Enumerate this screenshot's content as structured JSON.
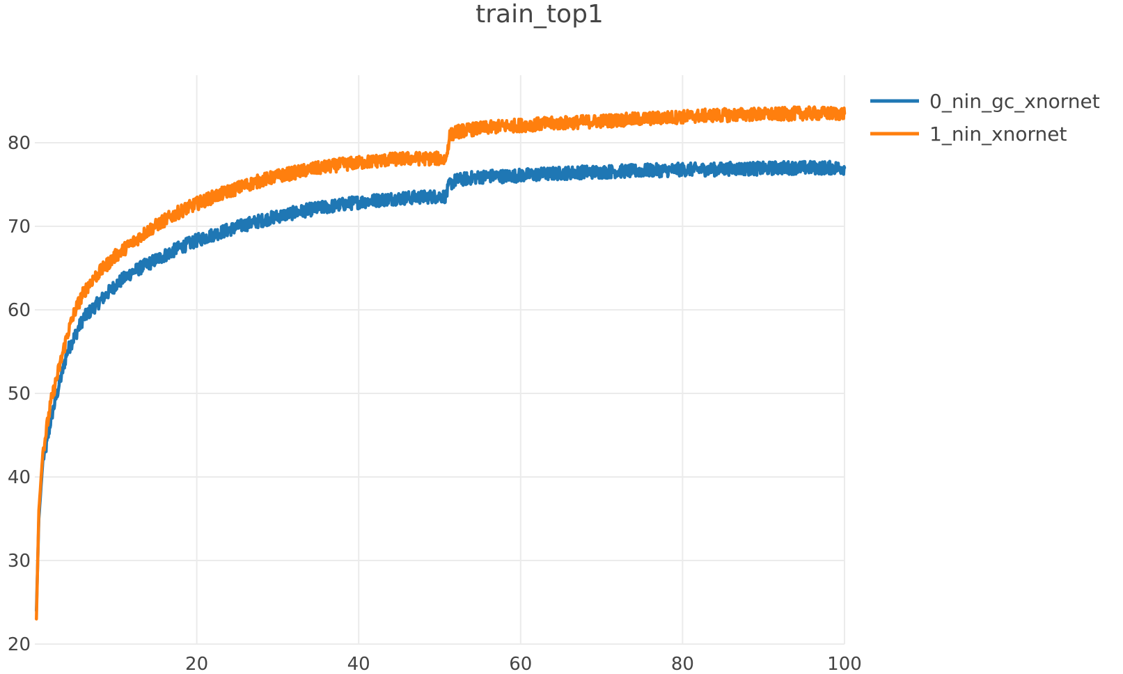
{
  "chart_data": {
    "type": "line",
    "title": "train_top1",
    "xlabel": "",
    "ylabel": "",
    "xlim": [
      0,
      100
    ],
    "ylim": [
      20,
      88
    ],
    "xticks": [
      20,
      40,
      60,
      80,
      100
    ],
    "yticks": [
      20,
      30,
      40,
      50,
      60,
      70,
      80
    ],
    "grid": true,
    "legend_position": "top-right",
    "series": [
      {
        "name": "0_nin_gc_xnornet",
        "color": "#1f77b4",
        "x": [
          0.2,
          0.5,
          1,
          1.5,
          2,
          3,
          4,
          5,
          6,
          7,
          8,
          9,
          10,
          12,
          14,
          16,
          18,
          20,
          22,
          24,
          26,
          28,
          30,
          32,
          34,
          36,
          38,
          40,
          42,
          44,
          46,
          48,
          50,
          50.8,
          51.2,
          52,
          54,
          56,
          58,
          60,
          62,
          64,
          66,
          68,
          70,
          72,
          74,
          76,
          78,
          80,
          82,
          84,
          86,
          88,
          90,
          92,
          94,
          96,
          98,
          100
        ],
        "y": [
          24,
          35,
          42,
          44,
          47,
          51,
          55,
          57,
          59,
          60,
          61,
          62,
          63,
          64.5,
          65.5,
          66.5,
          67.5,
          68.3,
          69,
          69.6,
          70.2,
          70.7,
          71.2,
          71.6,
          72,
          72.3,
          72.6,
          72.9,
          73.1,
          73.3,
          73.4,
          73.5,
          73.6,
          73.6,
          75,
          75.5,
          75.8,
          76,
          76,
          76.1,
          76.2,
          76.3,
          76.4,
          76.5,
          76.5,
          76.6,
          76.6,
          76.7,
          76.7,
          76.8,
          76.8,
          76.8,
          76.9,
          76.9,
          76.9,
          77,
          77,
          77,
          77,
          77
        ]
      },
      {
        "name": "1_nin_xnornet",
        "color": "#ff7f0e",
        "x": [
          0.2,
          0.5,
          1,
          1.5,
          2,
          3,
          4,
          5,
          6,
          7,
          8,
          9,
          10,
          12,
          14,
          16,
          18,
          20,
          22,
          24,
          26,
          28,
          30,
          32,
          34,
          36,
          38,
          40,
          42,
          44,
          46,
          48,
          50,
          50.8,
          51.2,
          52,
          54,
          56,
          58,
          60,
          62,
          64,
          66,
          68,
          70,
          72,
          74,
          76,
          78,
          80,
          82,
          84,
          86,
          88,
          90,
          92,
          94,
          96,
          98,
          100
        ],
        "y": [
          23,
          36,
          43,
          46,
          49,
          53,
          57,
          60,
          62,
          63.5,
          64.5,
          65.5,
          66.5,
          68,
          69.5,
          70.7,
          71.8,
          72.7,
          73.5,
          74.2,
          74.9,
          75.5,
          76,
          76.4,
          76.8,
          77.1,
          77.4,
          77.6,
          77.8,
          78,
          78.1,
          78.1,
          78.1,
          78,
          80.8,
          81.3,
          81.6,
          81.8,
          82,
          82.1,
          82.2,
          82.3,
          82.4,
          82.5,
          82.6,
          82.7,
          82.8,
          82.9,
          83,
          83.1,
          83.2,
          83.3,
          83.3,
          83.4,
          83.4,
          83.4,
          83.5,
          83.5,
          83.5,
          83.5
        ]
      }
    ]
  }
}
